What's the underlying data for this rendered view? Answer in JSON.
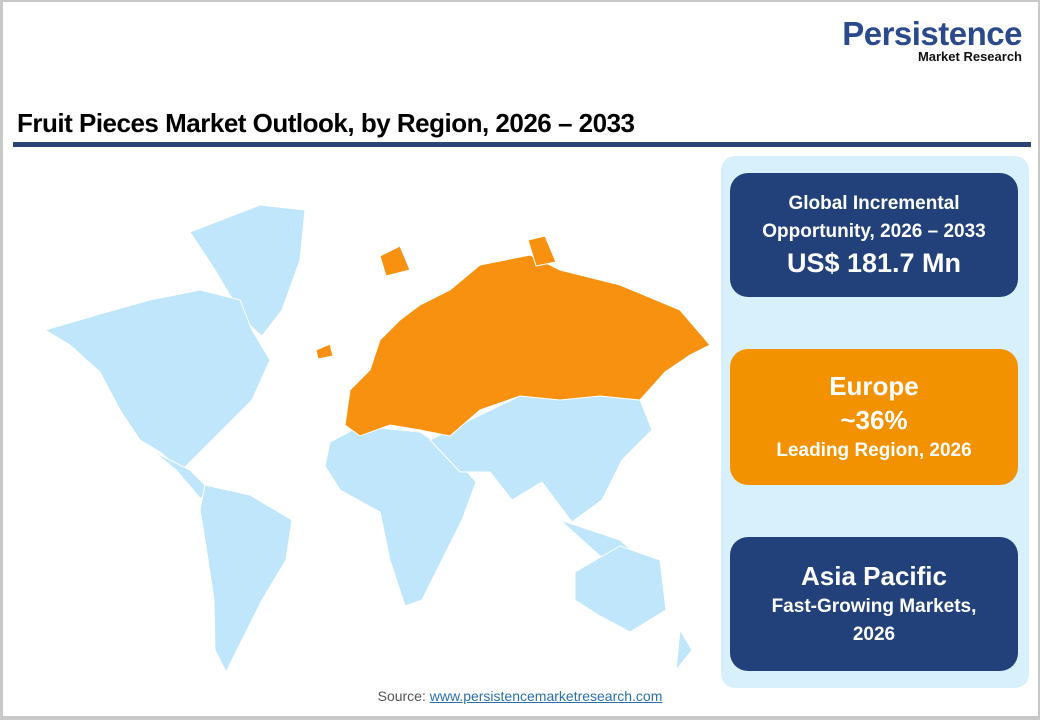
{
  "logo": {
    "name": "Persistence",
    "tagline": "Market Research"
  },
  "title": "Fruit Pieces Market Outlook, by Region, 2026 – 2033",
  "colors": {
    "navy": "#22407a",
    "orange": "#f39200",
    "map_base": "#bfe6fb",
    "map_highlight": "#f7910f",
    "panel": "#d8f0fb"
  },
  "map": {
    "highlighted_region": "Europe"
  },
  "cards": [
    {
      "lines": [
        "Global Incremental",
        "Opportunity, 2026 – 2033"
      ],
      "value": "US$ 181.7 Mn"
    },
    {
      "heading": "Europe",
      "value": "~36%",
      "caption": "Leading Region, 2026"
    },
    {
      "heading": "Asia Pacific",
      "lines": [
        "Fast-Growing Markets,",
        "2026"
      ]
    }
  ],
  "source": {
    "label": "Source:",
    "link": "www.persistencemarketresearch.com"
  }
}
